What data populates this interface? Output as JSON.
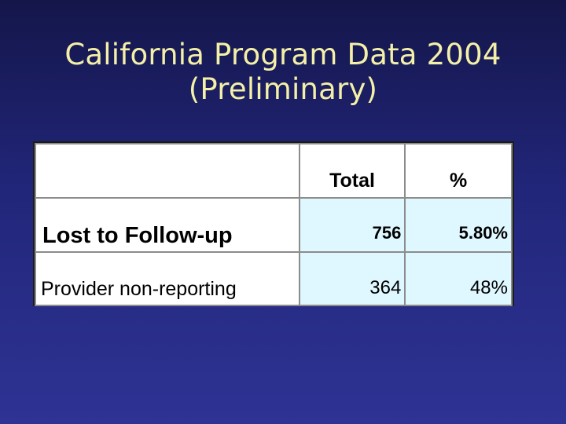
{
  "slide": {
    "title_line1": "California Program Data 2004",
    "title_line2": "(Preliminary)"
  },
  "table": {
    "headers": [
      "",
      "Total",
      "%"
    ],
    "rows": [
      {
        "label": "Lost to Follow-up",
        "total": "756",
        "percent": "5.80%"
      },
      {
        "label": "Provider non-reporting",
        "total": "364",
        "percent": "48%"
      }
    ]
  },
  "colors": {
    "background": "#22267a",
    "title_text": "#f4f0a8",
    "cell_shade": "#dff7ff"
  }
}
